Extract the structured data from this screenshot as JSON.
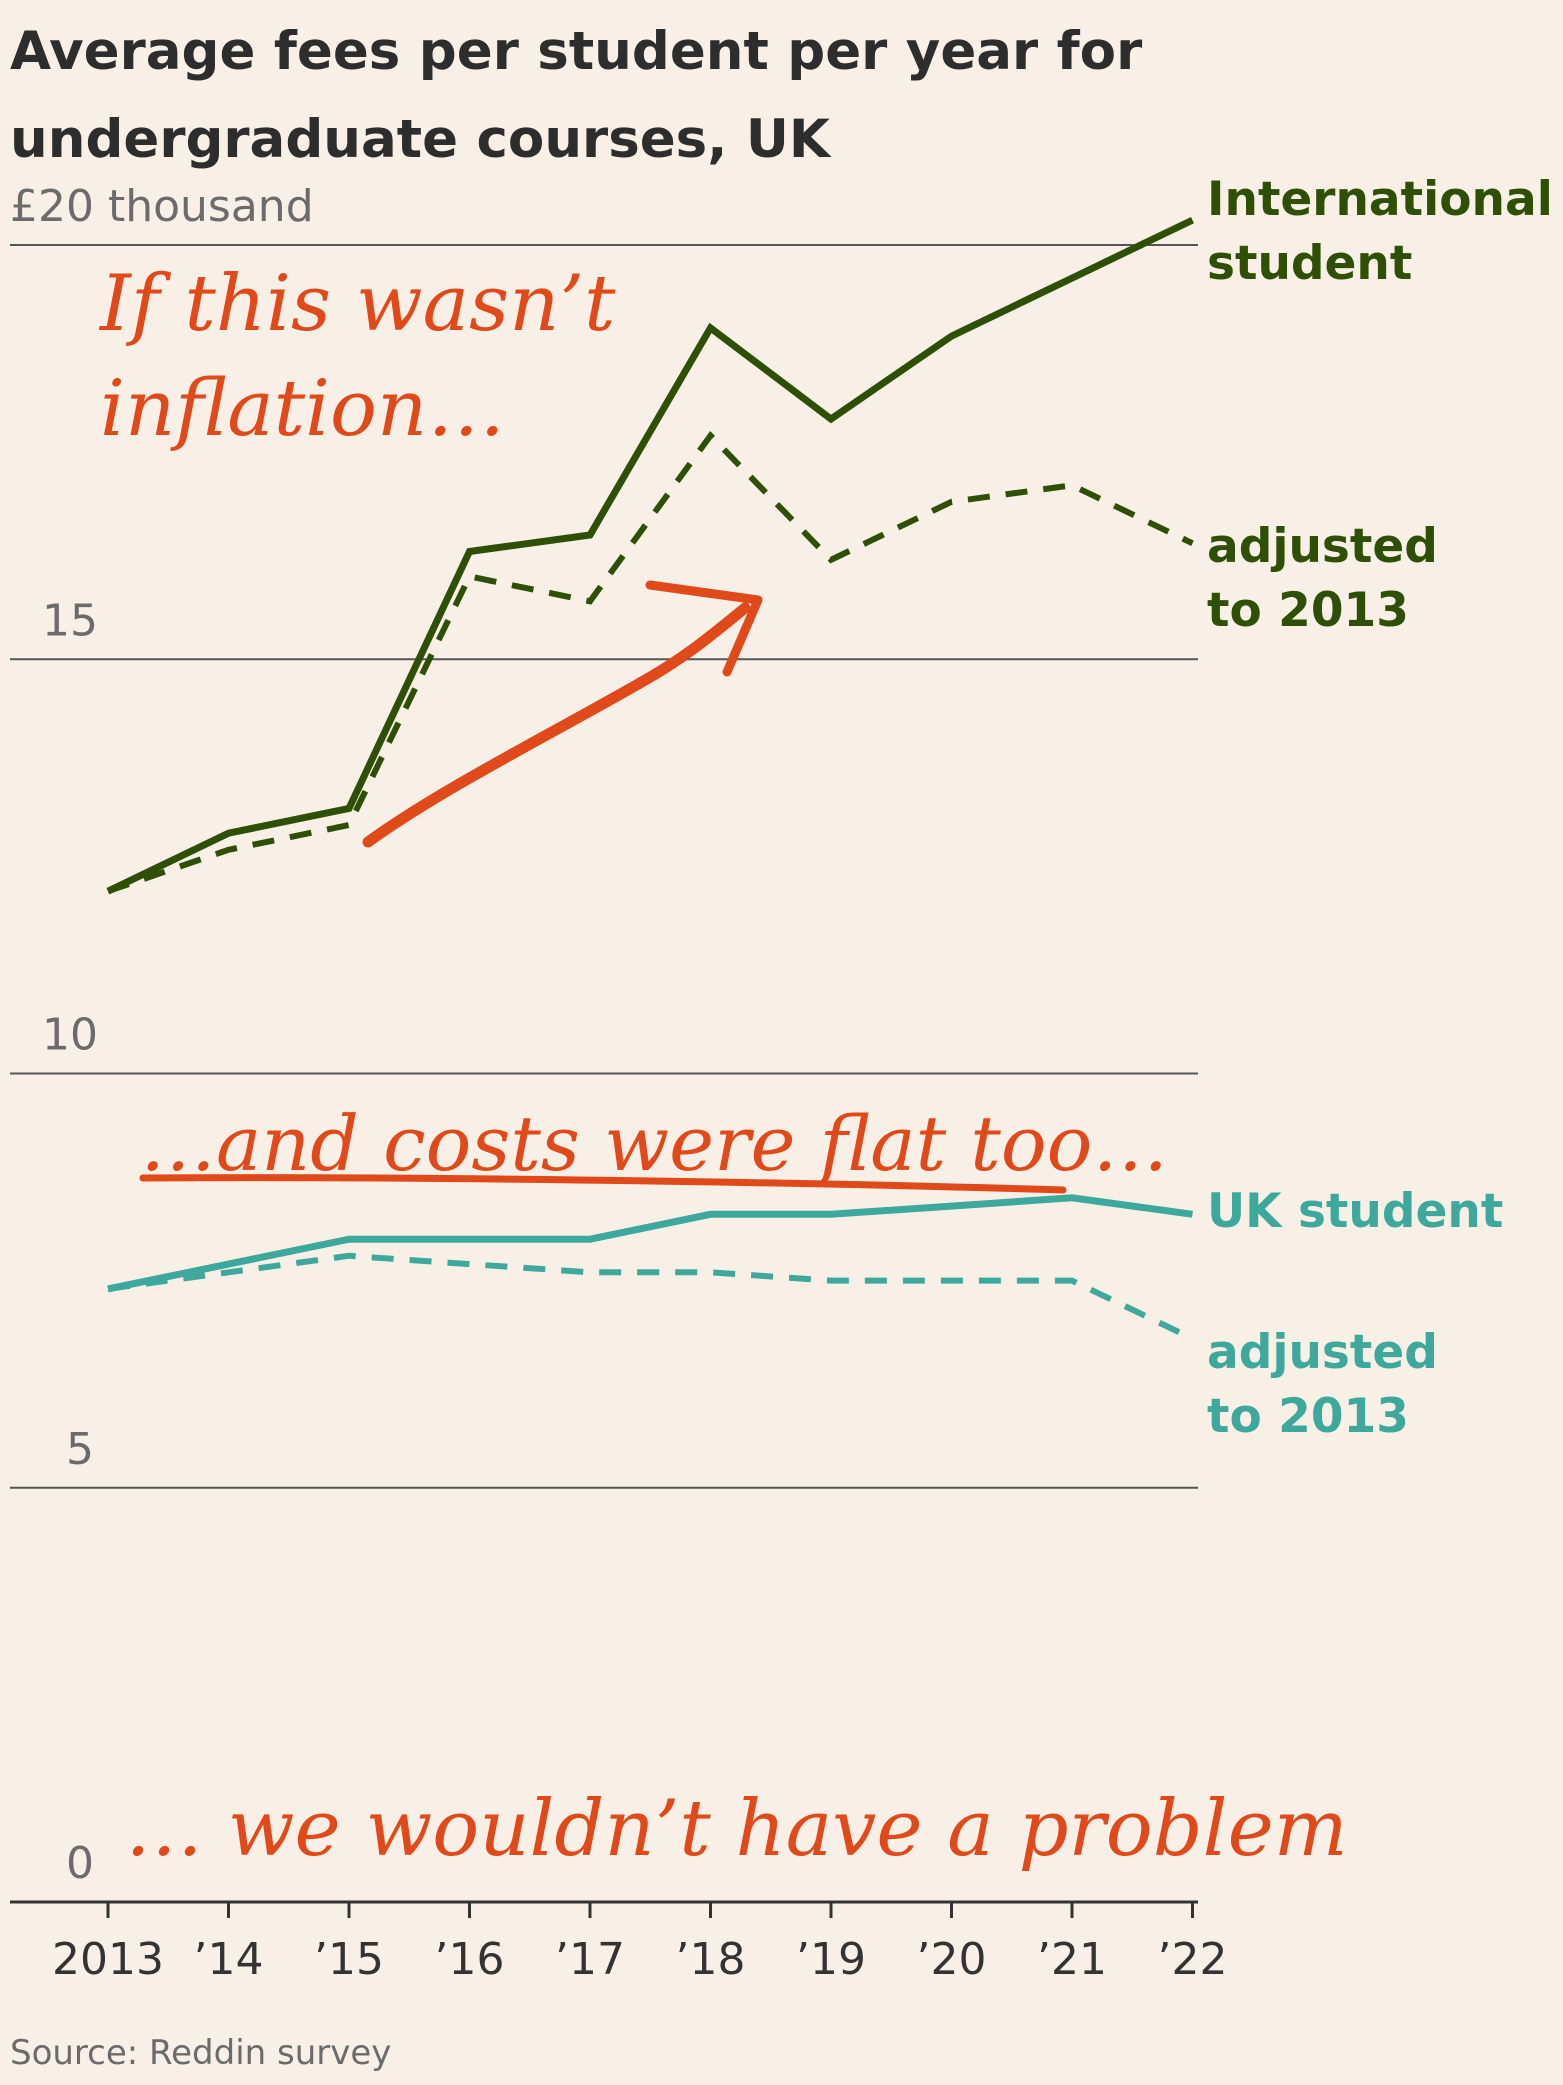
{
  "title_lines": [
    "Average fees per student per year for",
    "undergraduate courses, UK"
  ],
  "source": "Source: Reddin survey",
  "colors": {
    "international": "#2f4f07",
    "uk": "#3ea89c",
    "annotation": "#e04a1a",
    "grid": "#555555",
    "background": "#f8f0e7"
  },
  "annotations": {
    "inflation_line1": "If this wasn’t",
    "inflation_line2": "inflation…",
    "flat_costs": "…and costs were flat too…",
    "problem": "… we wouldn’t have a problem"
  },
  "chart_data": {
    "type": "line",
    "title": "Average fees per student per year for undergraduate courses, UK",
    "y_unit_label": "£20 thousand",
    "ylim": [
      0,
      20
    ],
    "y_ticks": [
      {
        "value": 20,
        "label": "£20 thousand"
      },
      {
        "value": 15,
        "label": "15"
      },
      {
        "value": 10,
        "label": "10"
      },
      {
        "value": 5,
        "label": "5"
      },
      {
        "value": 0,
        "label": "0"
      }
    ],
    "x": [
      2013,
      2014,
      2015,
      2016,
      2017,
      2018,
      2019,
      2020,
      2021,
      2022
    ],
    "x_tick_labels": [
      "2013",
      "’14",
      "’15",
      "’16",
      "’17",
      "’18",
      "’19",
      "’20",
      "’21",
      "’22"
    ],
    "grid": true,
    "series": [
      {
        "name_lines": [
          "International",
          "student"
        ],
        "key": "international",
        "dashed": false,
        "values": [
          12.2,
          12.9,
          13.2,
          16.3,
          16.5,
          19.0,
          17.9,
          18.9,
          19.6,
          20.3
        ]
      },
      {
        "name_lines": [
          "adjusted",
          "to 2013"
        ],
        "key": "international",
        "dashed": true,
        "values": [
          12.2,
          12.7,
          13.0,
          16.0,
          15.7,
          17.7,
          16.2,
          16.9,
          17.1,
          16.4
        ]
      },
      {
        "name_lines": [
          "UK student"
        ],
        "key": "uk",
        "dashed": false,
        "values": [
          7.4,
          7.7,
          8.0,
          8.0,
          8.0,
          8.3,
          8.3,
          8.4,
          8.5,
          8.3
        ]
      },
      {
        "name_lines": [
          "adjusted",
          "to 2013"
        ],
        "key": "uk",
        "dashed": true,
        "values": [
          7.4,
          7.6,
          7.8,
          7.7,
          7.6,
          7.6,
          7.5,
          7.5,
          7.5,
          6.8
        ]
      }
    ]
  }
}
